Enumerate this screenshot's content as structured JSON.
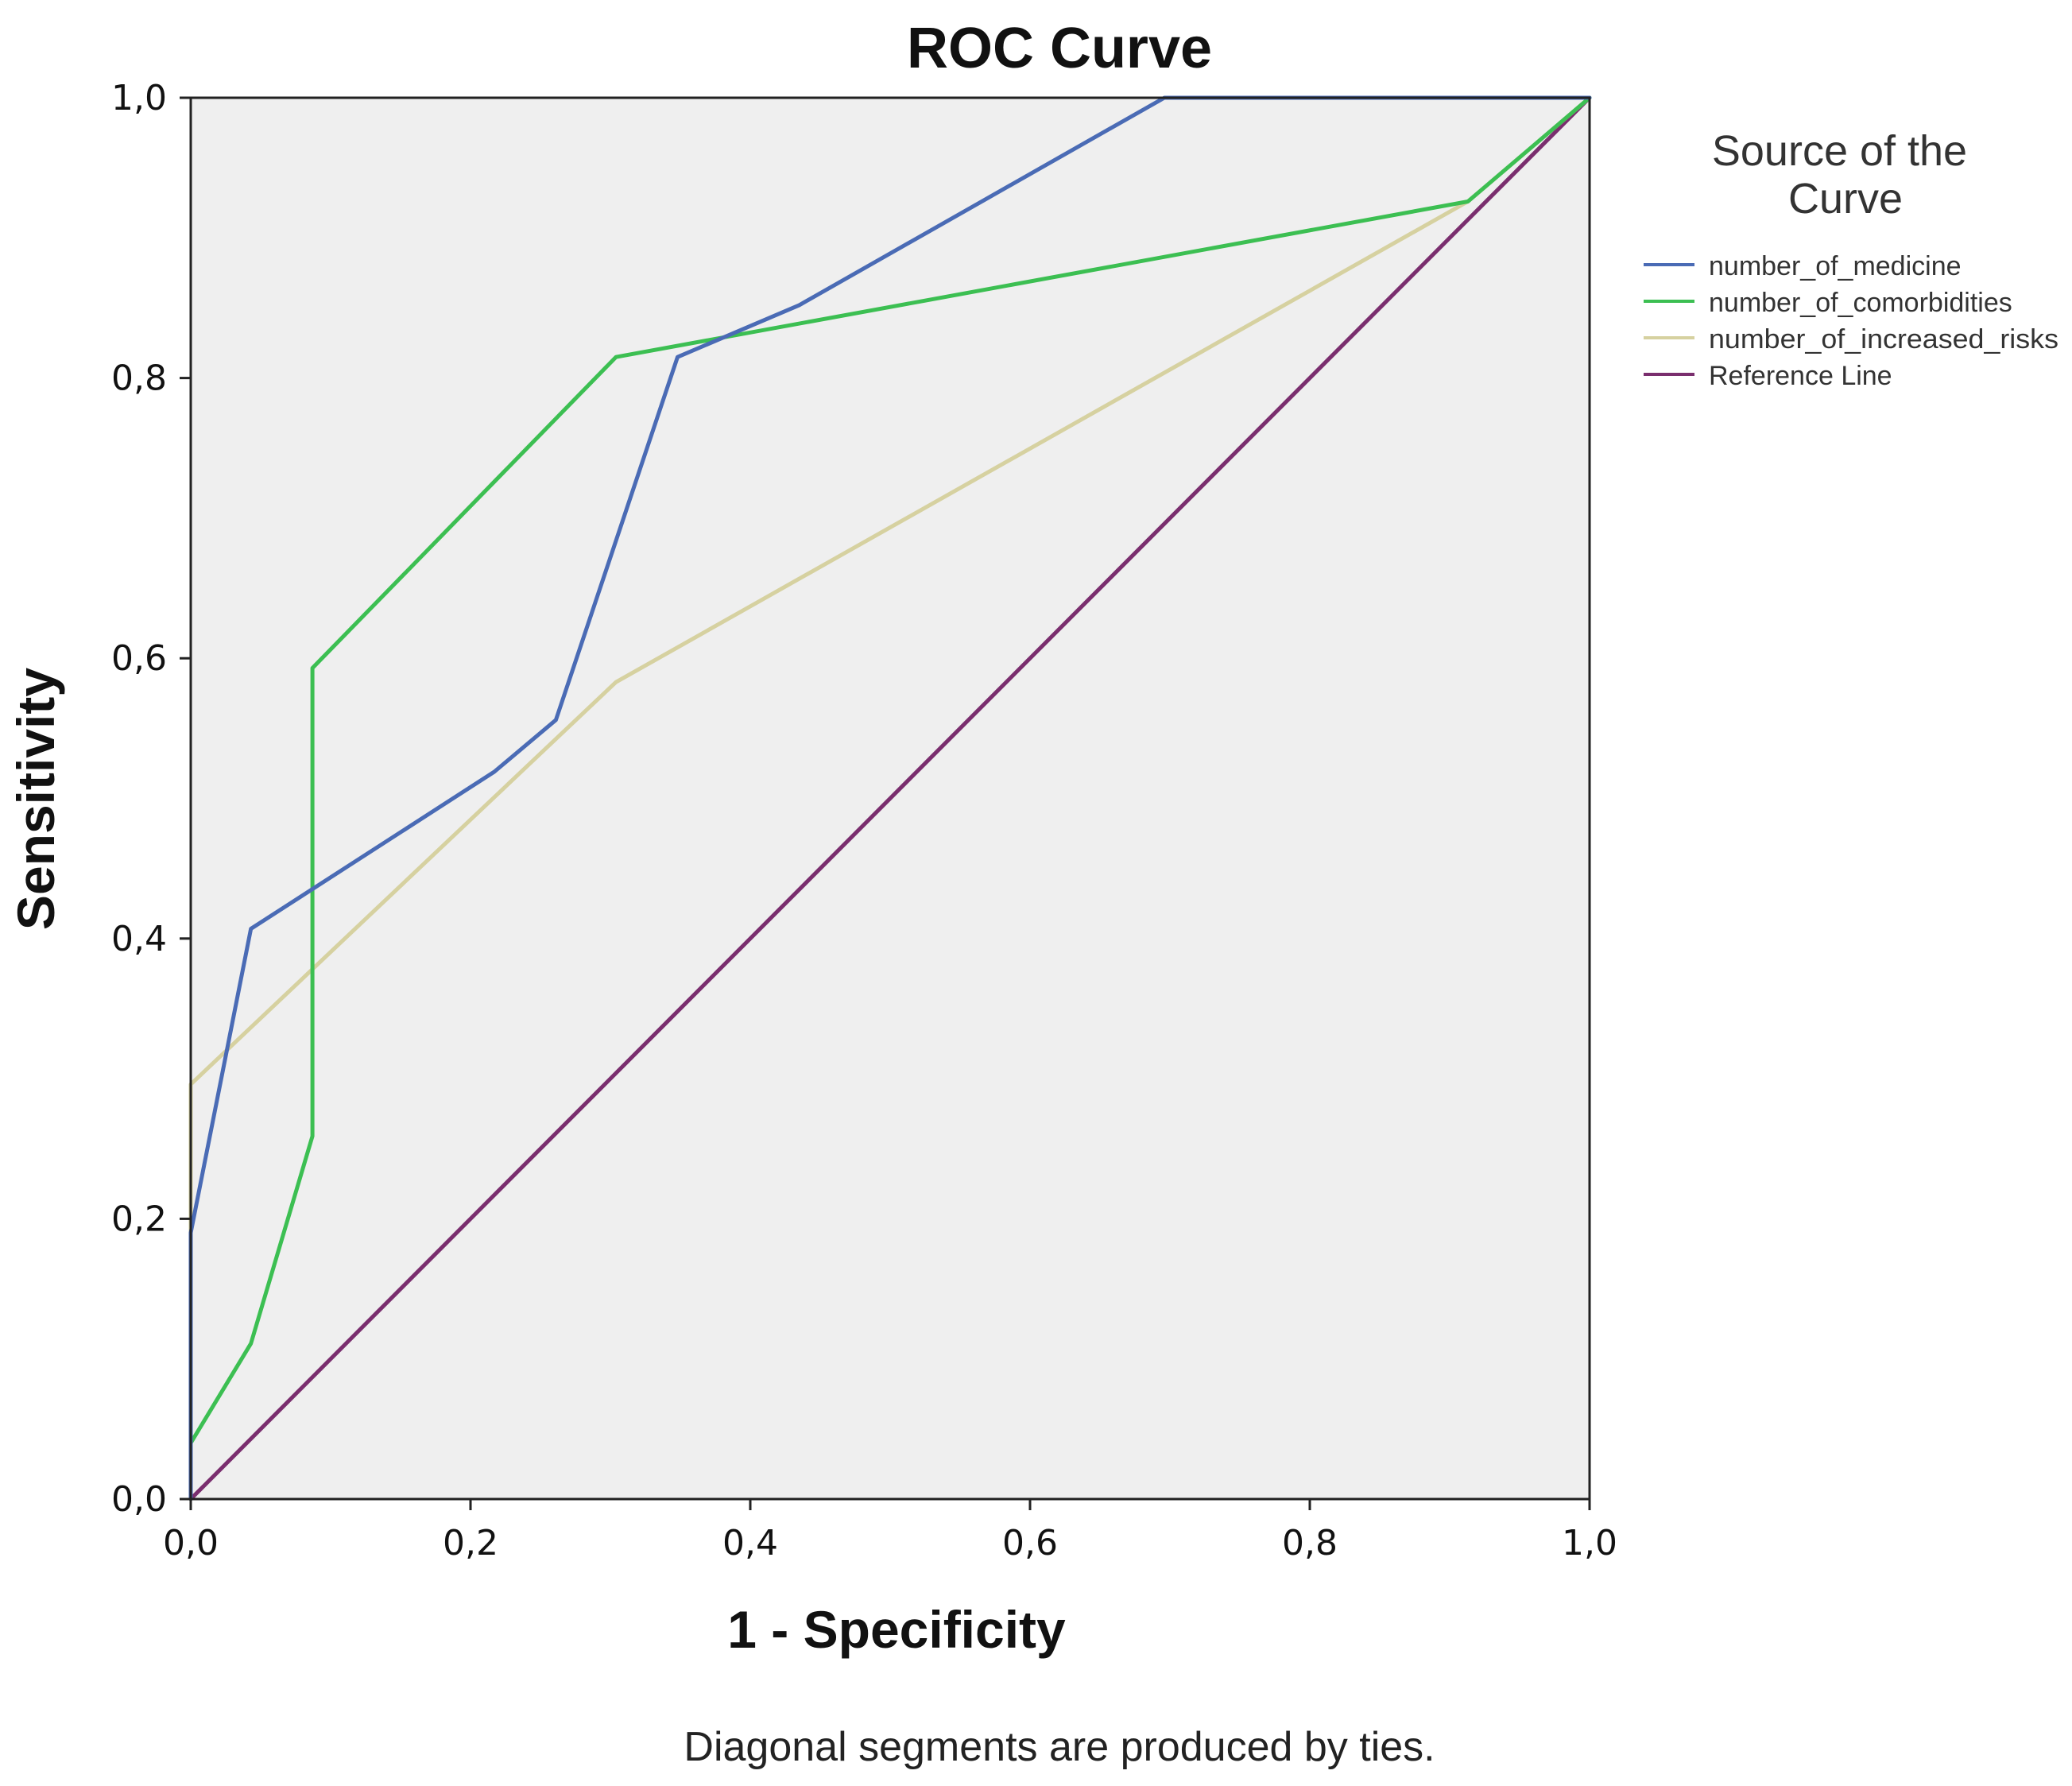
{
  "chart_data": {
    "type": "line",
    "title": "ROC Curve",
    "xlabel": "1 - Specificity",
    "ylabel": "Sensitivity",
    "xlim": [
      0,
      1
    ],
    "ylim": [
      0,
      1
    ],
    "x_ticks": [
      {
        "value": 0.0,
        "label": "0,0"
      },
      {
        "value": 0.2,
        "label": "0,2"
      },
      {
        "value": 0.4,
        "label": "0,4"
      },
      {
        "value": 0.6,
        "label": "0,6"
      },
      {
        "value": 0.8,
        "label": "0,8"
      },
      {
        "value": 1.0,
        "label": "1,0"
      }
    ],
    "y_ticks": [
      {
        "value": 0.0,
        "label": "0,0"
      },
      {
        "value": 0.2,
        "label": "0,2"
      },
      {
        "value": 0.4,
        "label": "0,4"
      },
      {
        "value": 0.6,
        "label": "0,6"
      },
      {
        "value": 0.8,
        "label": "0,8"
      },
      {
        "value": 1.0,
        "label": "1,0"
      }
    ],
    "grid": false,
    "legend": {
      "title": "Source of the Curve",
      "placement": "right",
      "entries": [
        "number_of_medicine",
        "number_of_comorbidities",
        "number_of_increased_risks",
        "Reference Line"
      ]
    },
    "series": [
      {
        "name": "number_of_medicine",
        "color": "#4a6bb5",
        "x": [
          0.0,
          0.0,
          0.043,
          0.217,
          0.261,
          0.348,
          0.435,
          0.696,
          1.0
        ],
        "y": [
          0.0,
          0.19,
          0.407,
          0.519,
          0.556,
          0.815,
          0.852,
          1.0,
          1.0
        ]
      },
      {
        "name": "number_of_comorbidities",
        "color": "#3cbf52",
        "x": [
          0.0,
          0.0,
          0.043,
          0.087,
          0.087,
          0.304,
          0.913,
          1.0
        ],
        "y": [
          0.0,
          0.04,
          0.111,
          0.259,
          0.593,
          0.815,
          0.926,
          1.0
        ]
      },
      {
        "name": "number_of_increased_risks",
        "color": "#d6d1a0",
        "x": [
          0.0,
          0.0,
          0.304,
          0.913,
          1.0
        ],
        "y": [
          0.0,
          0.296,
          0.583,
          0.926,
          1.0
        ]
      },
      {
        "name": "Reference Line",
        "color": "#7a2e6e",
        "x": [
          0.0,
          1.0
        ],
        "y": [
          0.0,
          1.0
        ]
      }
    ],
    "footnote": "Diagonal segments are produced by ties.",
    "plot_background": "#efefef",
    "frame_color": "#222222"
  }
}
